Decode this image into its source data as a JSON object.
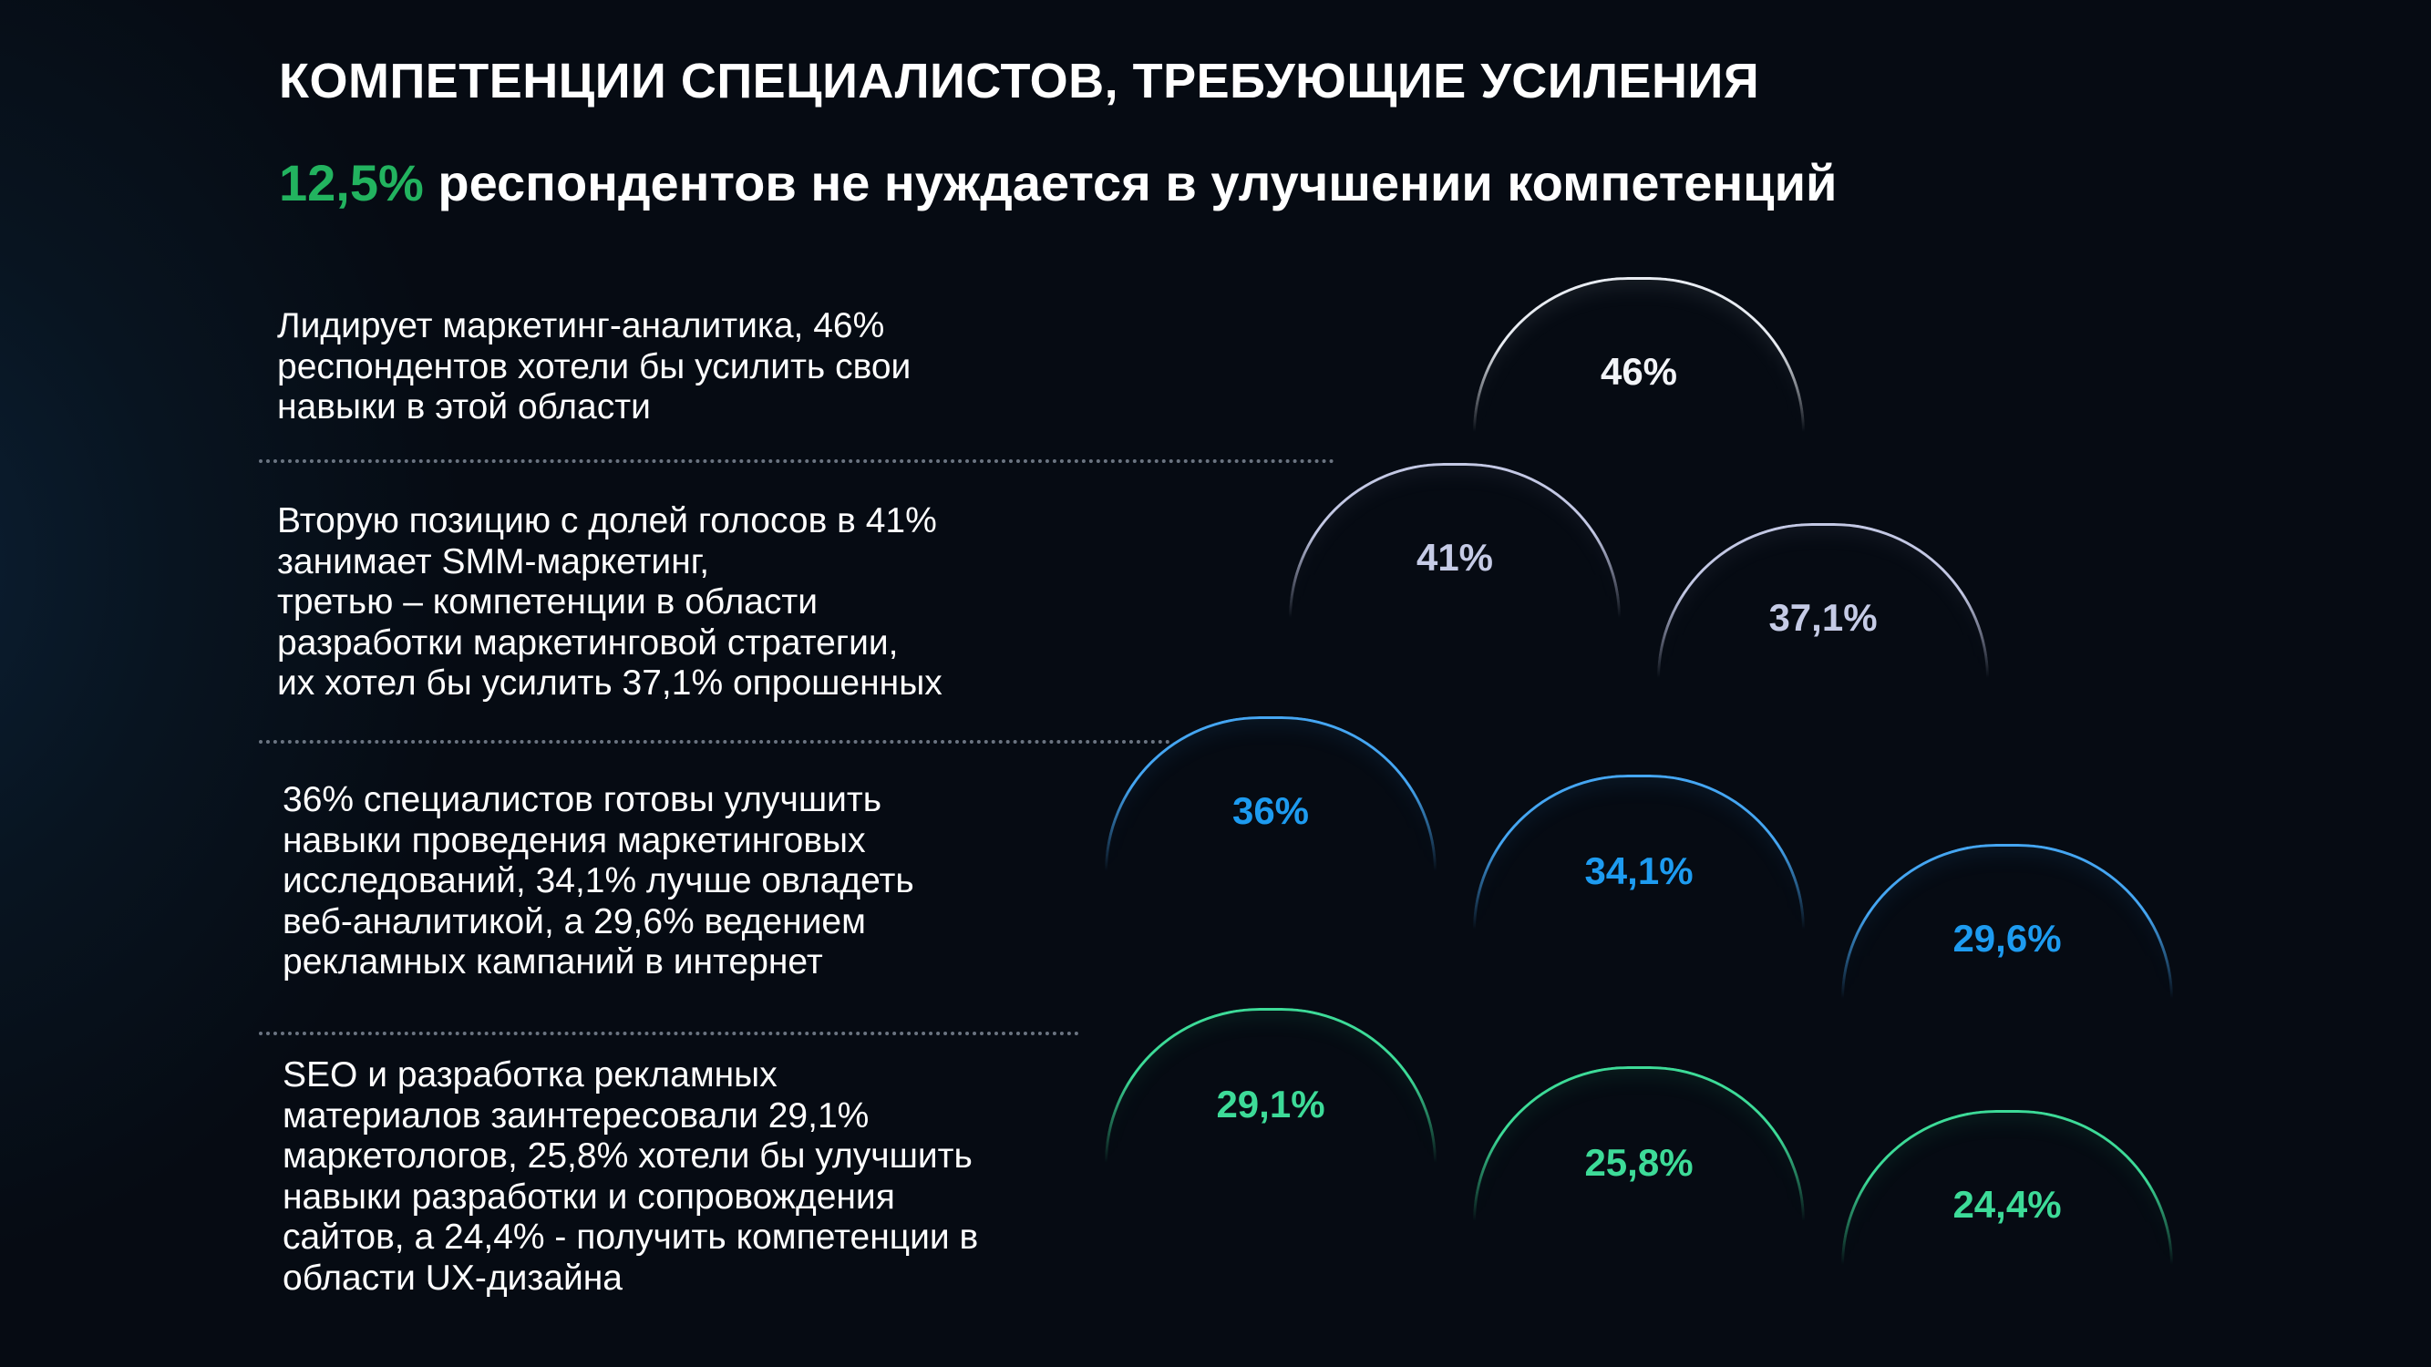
{
  "title": "КОМПЕТЕНЦИИ СПЕЦИАЛИСТОВ, ТРЕБУЮЩИЕ УСИЛЕНИЯ",
  "subtitle": {
    "highlight": "12,5%",
    "text": " респондентов не нуждается в улучшении компетенций",
    "highlight_color": "#22b35f"
  },
  "blocks": [
    {
      "lines": [
        "Лидирует маркетинг-аналитика, 46%",
        "респондентов хотели бы усилить свои",
        "навыки в этой области"
      ]
    },
    {
      "lines": [
        "Вторую позицию с долей голосов в 41%",
        "занимает SMM-маркетинг,",
        "третью – компетенции в области",
        "разработки маркетинговой стратегии,",
        "их хотел бы усилить 37,1% опрошенных"
      ]
    },
    {
      "lines": [
        "36% специалистов готовы улучшить",
        "навыки проведения маркетинговых",
        "исследований, 34,1% лучше овладеть",
        "веб-аналитикой, а 29,6% ведением",
        "рекламных кампаний в интернет"
      ]
    },
    {
      "lines": [
        "SEO и разработка рекламных",
        "материалов заинтересовали 29,1%",
        "маркетологов,  25,8% хотели бы улучшить",
        "навыки разработки и сопровождения",
        "сайтов, а 24,4% - получить компетенции в",
        "области UX-дизайна"
      ]
    }
  ],
  "domes": [
    {
      "label": "46%",
      "value": 46,
      "color": "white"
    },
    {
      "label": "41%",
      "value": 41,
      "color": "lavender"
    },
    {
      "label": "37,1%",
      "value": 37.1,
      "color": "lavender"
    },
    {
      "label": "36%",
      "value": 36,
      "color": "blue"
    },
    {
      "label": "34,1%",
      "value": 34.1,
      "color": "blue"
    },
    {
      "label": "29,6%",
      "value": 29.6,
      "color": "blue"
    },
    {
      "label": "29,1%",
      "value": 29.1,
      "color": "green"
    },
    {
      "label": "25,8%",
      "value": 25.8,
      "color": "green"
    },
    {
      "label": "24,4%",
      "value": 24.4,
      "color": "green"
    }
  ],
  "colors": {
    "background": "#060a12",
    "white": "#f2f4f8",
    "lavender": "#c5cbe6",
    "blue": "#1d9bf0",
    "green": "#3ddb98"
  }
}
